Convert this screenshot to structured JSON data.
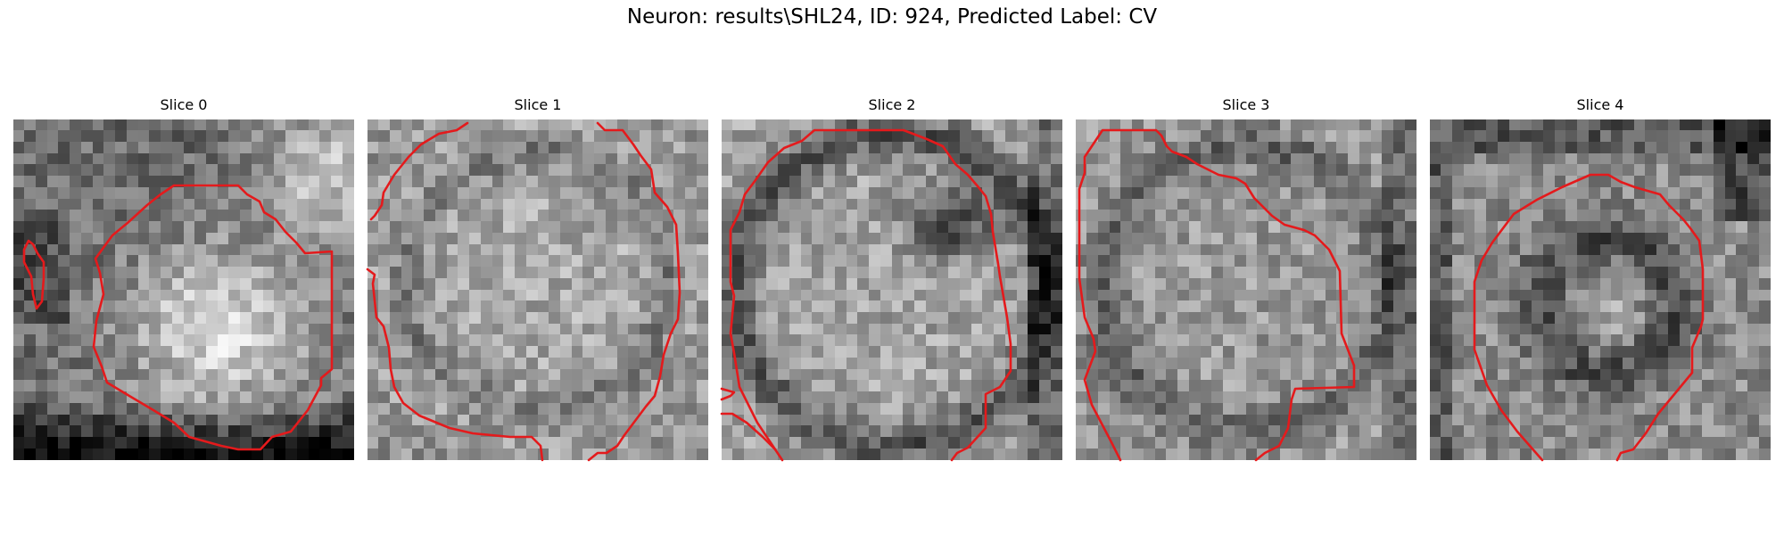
{
  "figure": {
    "title": "Neuron: results\\SHL24, ID: 924, Predicted Label: CV"
  },
  "colors": {
    "contour": "#e41a1c",
    "colormap": "gray"
  },
  "slices": [
    {
      "title": "Slice 0"
    },
    {
      "title": "Slice 1"
    },
    {
      "title": "Slice 2"
    },
    {
      "title": "Slice 3"
    },
    {
      "title": "Slice 4"
    }
  ]
}
